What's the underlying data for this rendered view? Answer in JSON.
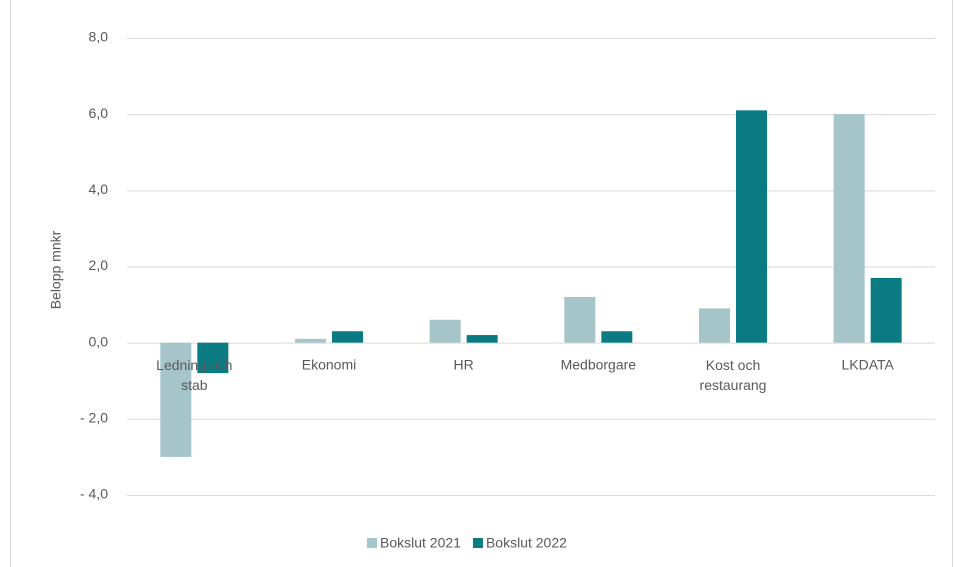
{
  "chart_data": {
    "type": "bar",
    "y_label": "Belopp mnkr",
    "categories": [
      "Ledning och stab",
      "Ekonomi",
      "HR",
      "Medborgare",
      "Kost och restaurang",
      "LKDATA"
    ],
    "series": [
      {
        "name": "Bokslut 2021",
        "color": "#a5c5c8",
        "values": [
          -3.0,
          0.1,
          0.6,
          1.2,
          0.9,
          6.0
        ]
      },
      {
        "name": "Bokslut 2022",
        "color": "#0a7b83",
        "values": [
          -0.8,
          0.3,
          0.2,
          0.3,
          6.1,
          1.7
        ]
      }
    ],
    "ylim": [
      -4,
      8
    ],
    "yticks": [
      {
        "value": -4,
        "label": "- 4,0"
      },
      {
        "value": -2,
        "label": "- 2,0"
      },
      {
        "value": 0,
        "label": "0,0"
      },
      {
        "value": 2,
        "label": "2,0"
      },
      {
        "value": 4,
        "label": "4,0"
      },
      {
        "value": 6,
        "label": "6,0"
      },
      {
        "value": 8,
        "label": "8,0"
      }
    ],
    "grid": true,
    "legend": "bottom"
  }
}
